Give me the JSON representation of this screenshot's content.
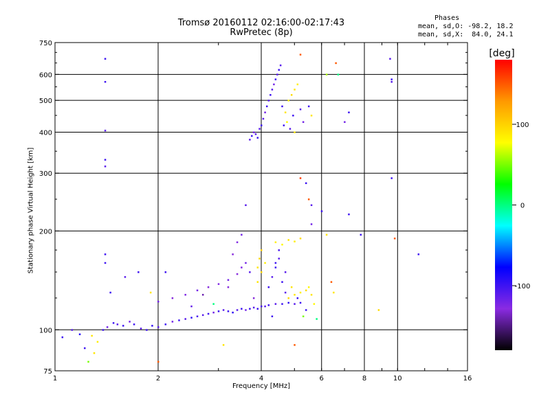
{
  "header": {
    "title_line1": "Tromsø 20160112 02:16:00-02:17:43",
    "title_line2": "RwPretec (8p)"
  },
  "stats": {
    "heading": "Phases",
    "line_o": "mean, sd,O: -98.2, 18.2",
    "line_x": "mean, sd,X:  84.0, 24.1"
  },
  "colorbar": {
    "label": "[deg]",
    "ticks": [
      100,
      0,
      -100
    ],
    "colors": [
      "#ff0000",
      "#ff9900",
      "#ffff00",
      "#00ff00",
      "#00ffff",
      "#0000ff",
      "#8a2be2",
      "#000000"
    ]
  },
  "chart_data": {
    "type": "scatter",
    "title": "Tromsø 20160112 02:16:00-02:17:43",
    "subtitle": "RwPretec (8p)",
    "xlabel": "Frequency [MHz]",
    "ylabel": "Stationary phase Virtual Height [km]",
    "xscale": "log",
    "yscale": "log",
    "xlim": [
      1,
      16
    ],
    "ylim": [
      75,
      750
    ],
    "x_ticks": [
      1,
      2,
      4,
      6,
      8,
      10,
      16
    ],
    "y_ticks": [
      75,
      100,
      200,
      300,
      400,
      500,
      600,
      750
    ],
    "grid_x": [
      2,
      4,
      6,
      8,
      10
    ],
    "grid_y": [
      100,
      200,
      300,
      400,
      500,
      600
    ],
    "color_scale_deg": [
      -180,
      180
    ],
    "points": [
      [
        1.05,
        95,
        -100
      ],
      [
        1.12,
        100,
        -110
      ],
      [
        1.18,
        97,
        -90
      ],
      [
        1.22,
        88,
        -100
      ],
      [
        1.28,
        96,
        90
      ],
      [
        1.33,
        92,
        85
      ],
      [
        1.38,
        100,
        -100
      ],
      [
        1.42,
        102,
        -120
      ],
      [
        1.48,
        105,
        -100
      ],
      [
        1.52,
        104,
        -110
      ],
      [
        1.58,
        103,
        -100
      ],
      [
        1.65,
        106,
        -120
      ],
      [
        1.7,
        104,
        -100
      ],
      [
        1.78,
        101,
        -110
      ],
      [
        1.85,
        100,
        -100
      ],
      [
        1.92,
        103,
        -95
      ],
      [
        2.0,
        102,
        -110
      ],
      [
        2.1,
        104,
        -100
      ],
      [
        2.2,
        106,
        -120
      ],
      [
        2.3,
        107,
        -100
      ],
      [
        2.4,
        108,
        -110
      ],
      [
        2.5,
        109,
        -95
      ],
      [
        2.6,
        110,
        -105
      ],
      [
        2.7,
        111,
        -110
      ],
      [
        2.8,
        112,
        -100
      ],
      [
        2.9,
        113,
        -120
      ],
      [
        3.0,
        114,
        -100
      ],
      [
        3.1,
        115,
        -110
      ],
      [
        3.2,
        114,
        -100
      ],
      [
        3.3,
        113,
        -95
      ],
      [
        3.4,
        115,
        -110
      ],
      [
        3.5,
        116,
        -100
      ],
      [
        3.6,
        115,
        -120
      ],
      [
        3.7,
        116,
        -100
      ],
      [
        3.8,
        117,
        -110
      ],
      [
        3.9,
        116,
        -100
      ],
      [
        4.0,
        118,
        -105
      ],
      [
        4.1,
        118,
        -110
      ],
      [
        4.2,
        119,
        -100
      ],
      [
        4.4,
        120,
        -110
      ],
      [
        4.6,
        120,
        -100
      ],
      [
        4.8,
        121,
        -95
      ],
      [
        5.0,
        120,
        -110
      ],
      [
        5.2,
        121,
        -100
      ],
      [
        2.0,
        122,
        -120
      ],
      [
        2.2,
        125,
        -130
      ],
      [
        2.4,
        128,
        -125
      ],
      [
        2.6,
        132,
        -120
      ],
      [
        2.8,
        135,
        -130
      ],
      [
        3.0,
        138,
        -125
      ],
      [
        3.2,
        142,
        -120
      ],
      [
        3.4,
        148,
        -130
      ],
      [
        3.5,
        155,
        -125
      ],
      [
        3.6,
        160,
        -120
      ],
      [
        3.3,
        170,
        -130
      ],
      [
        3.4,
        185,
        -125
      ],
      [
        3.5,
        195,
        -120
      ],
      [
        3.7,
        150,
        -110
      ],
      [
        3.9,
        140,
        90
      ],
      [
        4.0,
        150,
        95
      ],
      [
        4.1,
        160,
        85
      ],
      [
        3.95,
        165,
        100
      ],
      [
        4.2,
        135,
        -100
      ],
      [
        4.3,
        145,
        -110
      ],
      [
        4.4,
        155,
        -100
      ],
      [
        4.5,
        165,
        -110
      ],
      [
        4.5,
        175,
        -105
      ],
      [
        4.6,
        140,
        -100
      ],
      [
        4.7,
        130,
        -110
      ],
      [
        4.8,
        125,
        95
      ],
      [
        5.0,
        128,
        90
      ],
      [
        5.2,
        130,
        85
      ],
      [
        5.4,
        132,
        95
      ],
      [
        5.5,
        135,
        80
      ],
      [
        5.6,
        128,
        90
      ],
      [
        4.9,
        135,
        90
      ],
      [
        5.1,
        125,
        -100
      ],
      [
        4.4,
        185,
        85
      ],
      [
        4.6,
        182,
        80
      ],
      [
        4.8,
        188,
        90
      ],
      [
        5.0,
        186,
        85
      ],
      [
        5.2,
        190,
        95
      ],
      [
        3.7,
        380,
        -110
      ],
      [
        3.75,
        390,
        -100
      ],
      [
        3.8,
        400,
        -120
      ],
      [
        3.85,
        395,
        -110
      ],
      [
        3.9,
        385,
        -100
      ],
      [
        3.95,
        410,
        -110
      ],
      [
        4.0,
        420,
        -100
      ],
      [
        4.05,
        440,
        -110
      ],
      [
        4.1,
        460,
        -120
      ],
      [
        4.15,
        480,
        -100
      ],
      [
        4.2,
        500,
        -110
      ],
      [
        4.25,
        520,
        -100
      ],
      [
        4.3,
        540,
        -110
      ],
      [
        4.35,
        560,
        -120
      ],
      [
        4.4,
        580,
        -100
      ],
      [
        4.45,
        600,
        -110
      ],
      [
        4.5,
        620,
        -100
      ],
      [
        4.55,
        640,
        -110
      ],
      [
        4.6,
        480,
        -100
      ],
      [
        4.7,
        460,
        90
      ],
      [
        4.8,
        500,
        85
      ],
      [
        4.9,
        520,
        95
      ],
      [
        5.0,
        540,
        90
      ],
      [
        5.1,
        560,
        85
      ],
      [
        4.75,
        430,
        80
      ],
      [
        4.65,
        420,
        -100
      ],
      [
        4.85,
        410,
        -110
      ],
      [
        5.0,
        400,
        90
      ],
      [
        4.95,
        450,
        -100
      ],
      [
        5.2,
        470,
        -110
      ],
      [
        5.3,
        430,
        -120
      ],
      [
        5.5,
        480,
        -100
      ],
      [
        5.6,
        450,
        90
      ],
      [
        5.2,
        690,
        150
      ],
      [
        6.2,
        600,
        60
      ],
      [
        6.6,
        650,
        150
      ],
      [
        6.7,
        600,
        0
      ],
      [
        1.4,
        670,
        -100
      ],
      [
        1.4,
        570,
        -100
      ],
      [
        1.4,
        405,
        -110
      ],
      [
        1.4,
        330,
        -100
      ],
      [
        1.4,
        315,
        -110
      ],
      [
        1.4,
        170,
        -100
      ],
      [
        1.4,
        160,
        -100
      ],
      [
        7.0,
        430,
        -120
      ],
      [
        7.2,
        460,
        -100
      ],
      [
        9.5,
        670,
        -110
      ],
      [
        9.6,
        580,
        -100
      ],
      [
        9.6,
        570,
        -110
      ],
      [
        9.6,
        290,
        -100
      ],
      [
        9.8,
        190,
        150
      ],
      [
        11.5,
        170,
        -100
      ],
      [
        7.8,
        195,
        -100
      ],
      [
        7.2,
        225,
        -100
      ],
      [
        6.2,
        195,
        90
      ],
      [
        6.5,
        130,
        90
      ],
      [
        8.8,
        115,
        95
      ],
      [
        1.25,
        80,
        50
      ],
      [
        1.3,
        85,
        90
      ],
      [
        1.45,
        130,
        -100
      ],
      [
        1.6,
        145,
        -110
      ],
      [
        1.75,
        150,
        -100
      ],
      [
        1.9,
        130,
        90
      ],
      [
        2.1,
        150,
        -100
      ],
      [
        2.9,
        120,
        0
      ],
      [
        3.1,
        90,
        90
      ],
      [
        5.0,
        90,
        150
      ],
      [
        5.3,
        110,
        50
      ],
      [
        5.8,
        108,
        0
      ],
      [
        6.4,
        140,
        150
      ],
      [
        5.5,
        250,
        150
      ],
      [
        5.4,
        280,
        -100
      ],
      [
        5.6,
        240,
        -110
      ],
      [
        5.6,
        210,
        -120
      ],
      [
        6.0,
        230,
        -100
      ],
      [
        3.6,
        240,
        -110
      ],
      [
        5.2,
        290,
        160
      ],
      [
        2.0,
        80,
        150
      ],
      [
        3.2,
        135,
        -130
      ],
      [
        2.7,
        128,
        -140
      ],
      [
        2.5,
        118,
        -115
      ],
      [
        3.8,
        125,
        -130
      ],
      [
        4.3,
        110,
        -100
      ],
      [
        5.4,
        115,
        -100
      ],
      [
        5.7,
        120,
        80
      ],
      [
        4.0,
        175,
        100
      ],
      [
        3.9,
        155,
        90
      ],
      [
        4.4,
        160,
        -100
      ],
      [
        4.7,
        150,
        -110
      ]
    ]
  }
}
